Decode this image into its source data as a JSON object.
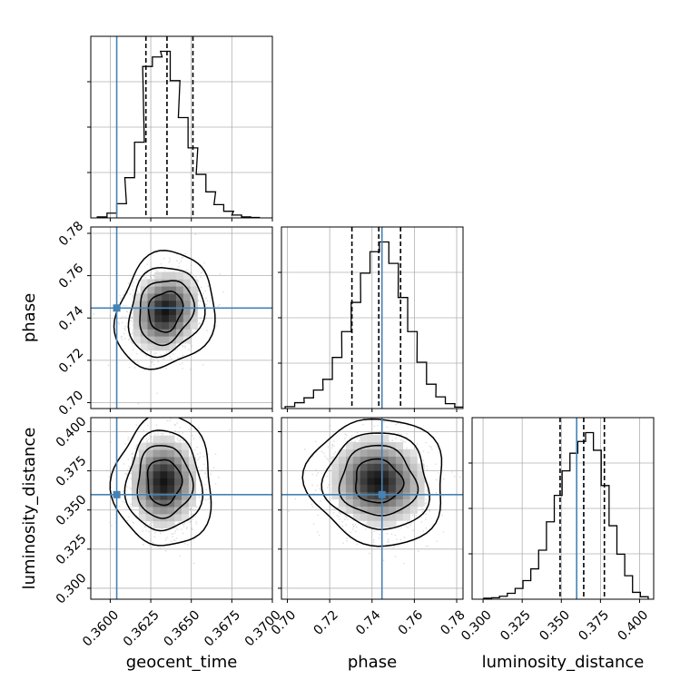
{
  "chart_data": {
    "type": "corner",
    "parameters": [
      "geocent_time",
      "phase",
      "luminosity_distance"
    ],
    "axis_labels": {
      "geocent_time": "geocent_time",
      "phase": "phase",
      "luminosity_distance": "luminosity_distance"
    },
    "ranges": {
      "geocent_time": [
        0.3588,
        0.37
      ],
      "phase": [
        0.6972,
        0.783
      ],
      "luminosity_distance": [
        0.293,
        0.409
      ]
    },
    "ticks": {
      "geocent_time": [
        0.36,
        0.3625,
        0.365,
        0.3675,
        0.37
      ],
      "phase": [
        0.7,
        0.72,
        0.74,
        0.76,
        0.78
      ],
      "luminosity_distance": [
        0.3,
        0.325,
        0.35,
        0.375,
        0.4
      ]
    },
    "tick_labels": {
      "geocent_time": [
        "0.3600",
        "0.3625",
        "0.3650",
        "0.3675",
        "0.3700"
      ],
      "phase": [
        "0.70",
        "0.72",
        "0.74",
        "0.76",
        "0.78"
      ],
      "luminosity_distance": [
        "0.300",
        "0.325",
        "0.350",
        "0.375",
        "0.400"
      ]
    },
    "truths": {
      "geocent_time": 0.3604,
      "phase": 0.7447,
      "luminosity_distance": 0.3598
    },
    "quantiles": {
      "geocent_time": [
        0.3622,
        0.3635,
        0.3651
      ],
      "phase": [
        0.7305,
        0.7432,
        0.7535
      ],
      "luminosity_distance": [
        0.3492,
        0.3643,
        0.3775
      ]
    },
    "histograms": {
      "geocent_time": {
        "x": [
          0.3595,
          0.3601,
          0.3607,
          0.3612,
          0.3618,
          0.3623,
          0.3629,
          0.3634,
          0.364,
          0.3645,
          0.3651,
          0.3656,
          0.3662,
          0.3667,
          0.3673,
          0.3678,
          0.3684,
          0.3689
        ],
        "counts": [
          2,
          10,
          30,
          85,
          160,
          320,
          340,
          352,
          290,
          212,
          148,
          92,
          55,
          28,
          14,
          6,
          2,
          1
        ]
      },
      "phase": {
        "x": [
          0.7012,
          0.7057,
          0.7101,
          0.7146,
          0.719,
          0.7235,
          0.7279,
          0.7324,
          0.7368,
          0.7413,
          0.7457,
          0.7502,
          0.7546,
          0.7591,
          0.7635,
          0.768,
          0.7724,
          0.7769,
          0.7813
        ],
        "counts": [
          4,
          12,
          22,
          38,
          60,
          105,
          158,
          218,
          278,
          322,
          342,
          298,
          228,
          158,
          95,
          50,
          24,
          10,
          3
        ]
      },
      "luminosity_distance": {
        "x": [
          0.303,
          0.308,
          0.313,
          0.318,
          0.323,
          0.328,
          0.333,
          0.338,
          0.343,
          0.348,
          0.353,
          0.358,
          0.363,
          0.368,
          0.373,
          0.378,
          0.383,
          0.388,
          0.393,
          0.398,
          0.403
        ],
        "counts": [
          2,
          3,
          6,
          12,
          22,
          38,
          62,
          100,
          158,
          212,
          262,
          298,
          322,
          340,
          304,
          232,
          150,
          92,
          48,
          14,
          5
        ]
      }
    },
    "pairs": [
      {
        "x": "geocent_time",
        "y": "phase",
        "mean": [
          0.3634,
          0.7432
        ],
        "sd": [
          0.00105,
          0.0095
        ],
        "rho": 0.15,
        "contour_levels": [
          1,
          1.6,
          2.2,
          2.9
        ]
      },
      {
        "x": "geocent_time",
        "y": "luminosity_distance",
        "mean": [
          0.3633,
          0.368
        ],
        "sd": [
          0.00105,
          0.0145
        ],
        "rho": 0.0,
        "contour_levels": [
          1,
          1.6,
          2.2,
          2.9
        ]
      },
      {
        "x": "phase",
        "y": "luminosity_distance",
        "mean": [
          0.7428,
          0.3683
        ],
        "sd": [
          0.0112,
          0.014
        ],
        "rho": -0.05,
        "contour_levels": [
          1,
          1.6,
          2.2,
          2.9
        ]
      }
    ],
    "grid": true,
    "truth_color": "#4682b4",
    "hist_color": "#000000"
  }
}
